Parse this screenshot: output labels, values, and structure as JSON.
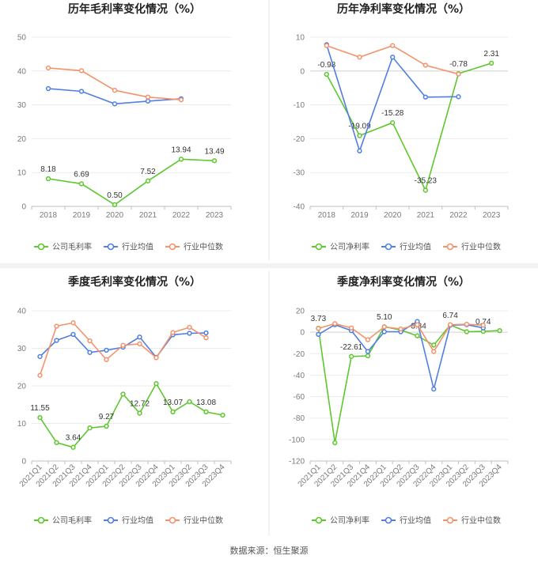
{
  "source": "数据来源：恒生聚源",
  "colors": {
    "company": "#5ec72d",
    "avg": "#4f7fe0",
    "median": "#f4926c"
  },
  "chart_data": [
    {
      "type": "line",
      "title": "历年毛利率变化情况（%）",
      "x": [
        "2018",
        "2019",
        "2020",
        "2021",
        "2022",
        "2023"
      ],
      "ylim": [
        0,
        50
      ],
      "yticks": [
        0,
        10,
        20,
        30,
        40,
        50
      ],
      "grid": true,
      "legend": "bottom",
      "series": [
        {
          "name": "公司毛利率",
          "color": "#5ec72d",
          "values": [
            8.18,
            6.69,
            0.5,
            7.52,
            13.94,
            13.49
          ],
          "labels": [
            "8.18",
            "6.69",
            "0.50",
            "7.52",
            "13.94",
            "13.49"
          ]
        },
        {
          "name": "行业均值",
          "color": "#4f7fe0",
          "values": [
            34.8,
            34.0,
            30.3,
            31.1,
            31.8,
            null
          ]
        },
        {
          "name": "行业中位数",
          "color": "#f4926c",
          "values": [
            40.9,
            40.1,
            34.3,
            32.3,
            31.5,
            null
          ]
        }
      ]
    },
    {
      "type": "line",
      "title": "历年净利率变化情况（%）",
      "x": [
        "2018",
        "2019",
        "2020",
        "2021",
        "2022",
        "2023"
      ],
      "ylim": [
        -40,
        10
      ],
      "yticks": [
        -40,
        -30,
        -20,
        -10,
        0,
        10
      ],
      "grid": true,
      "legend": "bottom",
      "series": [
        {
          "name": "公司净利率",
          "color": "#5ec72d",
          "values": [
            -0.98,
            -19.09,
            -15.28,
            -35.23,
            -0.78,
            2.31
          ],
          "labels": [
            "-0.98",
            "-19.09",
            "-15.28",
            "-35.23",
            "-0.78",
            "2.31"
          ]
        },
        {
          "name": "行业均值",
          "color": "#4f7fe0",
          "values": [
            7.8,
            -23.6,
            4.1,
            -7.7,
            -7.6,
            null
          ]
        },
        {
          "name": "行业中位数",
          "color": "#f4926c",
          "values": [
            7.5,
            4.1,
            7.5,
            1.7,
            -0.9,
            null
          ]
        }
      ]
    },
    {
      "type": "line",
      "title": "季度毛利率变化情况（%）",
      "x": [
        "2021Q1",
        "2021Q2",
        "2021Q3",
        "2021Q4",
        "2022Q1",
        "2022Q2",
        "2022Q3",
        "2022Q4",
        "2023Q1",
        "2023Q2",
        "2023Q3",
        "2023Q4"
      ],
      "ylim": [
        0,
        40
      ],
      "yticks": [
        0,
        10,
        20,
        30,
        40
      ],
      "grid": true,
      "legend": "bottom",
      "series": [
        {
          "name": "公司毛利率",
          "color": "#5ec72d",
          "values": [
            11.55,
            4.9,
            3.64,
            8.8,
            9.27,
            17.8,
            12.72,
            20.6,
            13.07,
            15.8,
            13.08,
            12.2
          ],
          "labels": [
            "11.55",
            "",
            "3.64",
            "",
            "9.27",
            "",
            "12.72",
            "",
            "13.07",
            "",
            "13.08",
            ""
          ]
        },
        {
          "name": "行业均值",
          "color": "#4f7fe0",
          "values": [
            27.8,
            32.1,
            33.7,
            28.9,
            29.5,
            30.3,
            33.0,
            27.6,
            33.6,
            34.0,
            34.1,
            null
          ]
        },
        {
          "name": "行业中位数",
          "color": "#f4926c",
          "values": [
            22.8,
            35.9,
            36.8,
            32.0,
            27.0,
            30.8,
            31.2,
            27.5,
            34.2,
            35.6,
            32.8,
            null
          ]
        }
      ]
    },
    {
      "type": "line",
      "title": "季度净利率变化情况（%）",
      "x": [
        "2021Q1",
        "2021Q2",
        "2021Q3",
        "2021Q4",
        "2022Q1",
        "2022Q2",
        "2022Q3",
        "2022Q4",
        "2023Q1",
        "2023Q2",
        "2023Q3",
        "2023Q4"
      ],
      "ylim": [
        -120,
        20
      ],
      "yticks": [
        -120,
        -100,
        -80,
        -60,
        -40,
        -20,
        0,
        20
      ],
      "grid": true,
      "legend": "bottom",
      "series": [
        {
          "name": "公司净利率",
          "color": "#5ec72d",
          "values": [
            3.73,
            -103.0,
            -22.61,
            -22.0,
            5.1,
            2.0,
            -3.34,
            -12.0,
            6.74,
            0.5,
            0.74,
            1.5
          ],
          "labels": [
            "3.73",
            "",
            "-22.61",
            "",
            "5.10",
            "",
            "-3.34",
            "",
            "6.74",
            "",
            "0.74",
            ""
          ]
        },
        {
          "name": "行业均值",
          "color": "#4f7fe0",
          "values": [
            -2.0,
            7.0,
            1.5,
            -18.0,
            0.5,
            0.5,
            10.0,
            -53.0,
            6.5,
            7.0,
            4.0,
            null
          ]
        },
        {
          "name": "行业中位数",
          "color": "#f4926c",
          "values": [
            3.5,
            8.0,
            4.0,
            -7.0,
            5.0,
            3.0,
            7.0,
            -18.0,
            7.0,
            7.5,
            6.5,
            null
          ]
        }
      ]
    }
  ]
}
